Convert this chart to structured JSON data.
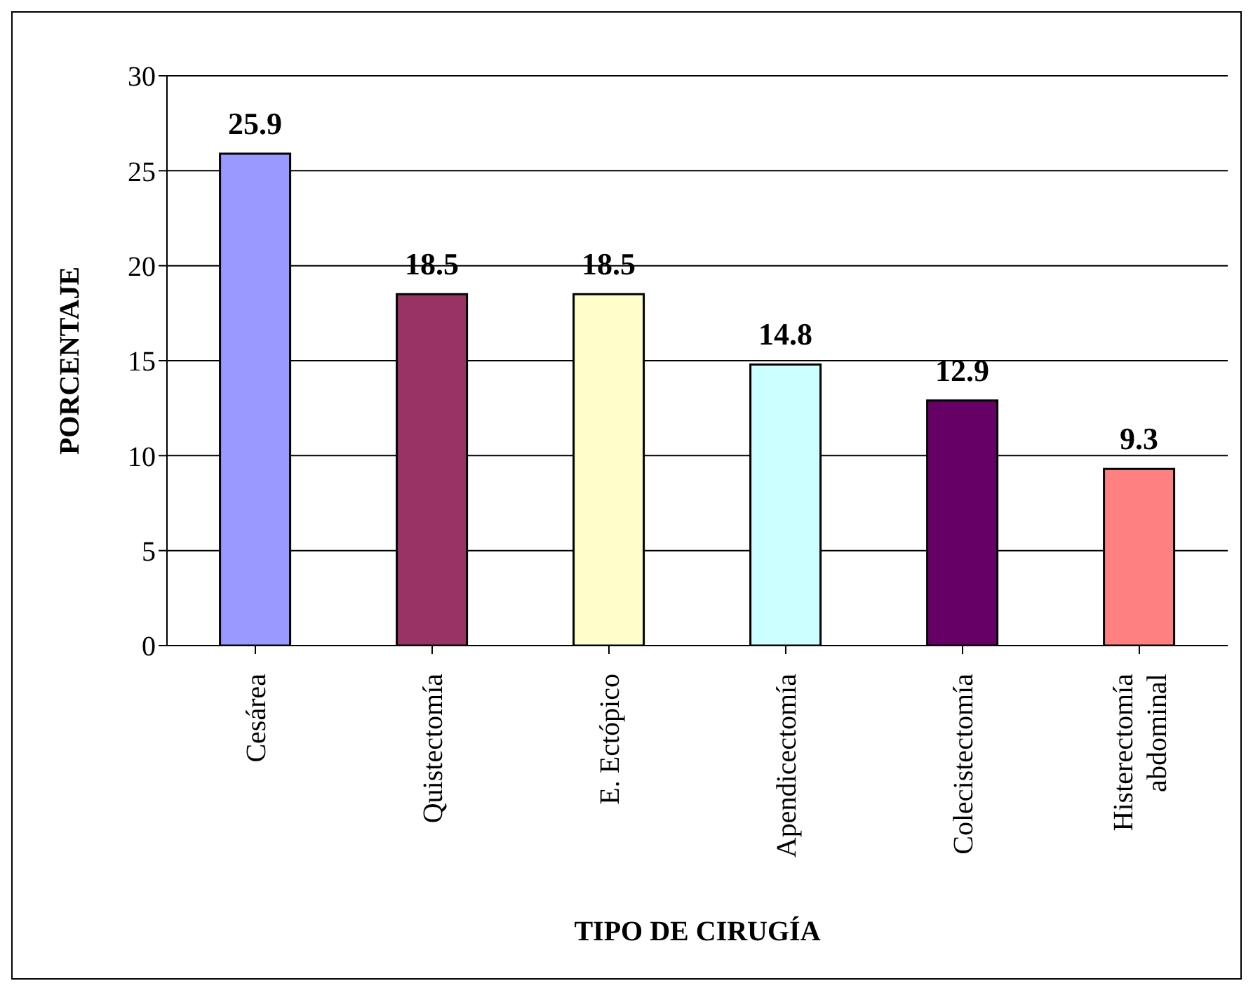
{
  "chart_data": {
    "type": "bar",
    "xlabel": "TIPO DE CIRUGÍA",
    "ylabel": "PORCENTAJE",
    "categories": [
      "Cesárea",
      "Quistectomía",
      "E. Ectópico",
      "Apendicectomía",
      "Colecistectomía",
      "Histerectomía abdominal"
    ],
    "values": [
      25.9,
      18.5,
      18.5,
      14.8,
      12.9,
      9.3
    ],
    "colors": [
      "#9999ff",
      "#993366",
      "#ffffcc",
      "#ccffff",
      "#660066",
      "#ff8080"
    ],
    "ylim": [
      0,
      30
    ],
    "yticks": [
      0,
      5,
      10,
      15,
      20,
      25,
      30
    ],
    "grid": "y",
    "data_labels": true,
    "legend": false
  }
}
